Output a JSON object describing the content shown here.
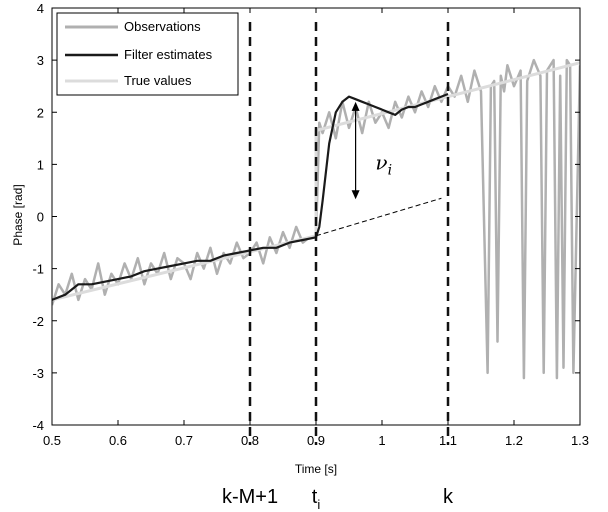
{
  "chart_data": {
    "type": "line",
    "xlabel": "Time [s]",
    "ylabel": "Phase [rad]",
    "xlim": [
      0.5,
      1.3
    ],
    "ylim": [
      -4,
      4
    ],
    "xticks": [
      0.5,
      0.6,
      0.7,
      0.8,
      0.9,
      1.0,
      1.1,
      1.2,
      1.3
    ],
    "xtick_labels": [
      "0.5",
      "0.6",
      "0.7",
      "0.8",
      "0.9",
      "1",
      "1.1",
      "1.2",
      "1.3"
    ],
    "yticks": [
      -4,
      -3,
      -2,
      -1,
      0,
      1,
      2,
      3,
      4
    ],
    "ytick_labels": [
      "-4",
      "-3",
      "-2",
      "-1",
      "0",
      "1",
      "2",
      "3",
      "4"
    ],
    "grid": false,
    "legend_position": "top-left",
    "series": [
      {
        "name": "Observations",
        "color": "#b0b0b0",
        "x": [
          0.5,
          0.51,
          0.52,
          0.53,
          0.54,
          0.55,
          0.56,
          0.57,
          0.58,
          0.59,
          0.6,
          0.61,
          0.62,
          0.63,
          0.64,
          0.65,
          0.66,
          0.67,
          0.68,
          0.69,
          0.7,
          0.71,
          0.72,
          0.73,
          0.74,
          0.75,
          0.76,
          0.77,
          0.78,
          0.79,
          0.8,
          0.81,
          0.82,
          0.83,
          0.84,
          0.85,
          0.86,
          0.87,
          0.88,
          0.89,
          0.9,
          0.905,
          0.91,
          0.92,
          0.93,
          0.94,
          0.95,
          0.96,
          0.97,
          0.98,
          0.99,
          1.0,
          1.01,
          1.02,
          1.03,
          1.04,
          1.05,
          1.06,
          1.07,
          1.08,
          1.09,
          1.1,
          1.11,
          1.12,
          1.13,
          1.14,
          1.15,
          1.16,
          1.165,
          1.17,
          1.175,
          1.18,
          1.185,
          1.19,
          1.2,
          1.21,
          1.215,
          1.22,
          1.23,
          1.24,
          1.245,
          1.25,
          1.26,
          1.265,
          1.27,
          1.275,
          1.28,
          1.285,
          1.29,
          1.3
        ],
        "values": [
          -1.7,
          -1.3,
          -1.5,
          -1.1,
          -1.6,
          -1.2,
          -1.4,
          -0.9,
          -1.5,
          -1.1,
          -1.3,
          -0.9,
          -1.2,
          -0.8,
          -1.3,
          -0.9,
          -1.1,
          -0.7,
          -1.2,
          -0.8,
          -0.9,
          -1.2,
          -0.7,
          -1.0,
          -0.6,
          -1.1,
          -0.7,
          -0.9,
          -0.5,
          -0.8,
          -0.7,
          -0.5,
          -0.9,
          -0.4,
          -0.7,
          -0.3,
          -0.6,
          -0.2,
          -0.5,
          -0.4,
          -0.4,
          1.8,
          1.6,
          2.0,
          1.5,
          2.2,
          1.7,
          2.1,
          1.6,
          2.2,
          1.8,
          2.0,
          1.7,
          2.2,
          1.9,
          2.3,
          2.0,
          2.4,
          2.1,
          2.5,
          2.2,
          2.5,
          2.3,
          2.7,
          2.2,
          2.8,
          2.4,
          -3.0,
          2.5,
          2.6,
          -2.4,
          2.7,
          2.4,
          2.9,
          2.5,
          2.8,
          -3.1,
          2.6,
          3.0,
          2.7,
          -3.0,
          2.8,
          3.0,
          -3.1,
          2.7,
          -2.9,
          3.0,
          2.9,
          -3.0,
          2.9
        ]
      },
      {
        "name": "Filter estimates",
        "color": "#1a1a1a",
        "x": [
          0.5,
          0.52,
          0.54,
          0.56,
          0.58,
          0.6,
          0.62,
          0.64,
          0.66,
          0.68,
          0.7,
          0.72,
          0.74,
          0.76,
          0.78,
          0.8,
          0.82,
          0.84,
          0.86,
          0.88,
          0.9,
          0.905,
          0.91,
          0.92,
          0.93,
          0.94,
          0.95,
          0.96,
          0.97,
          0.98,
          0.99,
          1.0,
          1.01,
          1.02,
          1.03,
          1.04,
          1.05,
          1.06,
          1.07,
          1.08,
          1.09,
          1.1
        ],
        "values": [
          -1.6,
          -1.5,
          -1.3,
          -1.3,
          -1.25,
          -1.2,
          -1.15,
          -1.05,
          -1.0,
          -0.95,
          -0.9,
          -0.85,
          -0.85,
          -0.75,
          -0.7,
          -0.65,
          -0.6,
          -0.6,
          -0.5,
          -0.45,
          -0.4,
          -0.2,
          0.3,
          1.4,
          2.0,
          2.2,
          2.3,
          2.25,
          2.2,
          2.15,
          2.1,
          2.05,
          2.0,
          1.95,
          2.05,
          2.1,
          2.1,
          2.15,
          2.2,
          2.25,
          2.3,
          2.35
        ]
      },
      {
        "name": "True values",
        "color": "#dcdcdc",
        "x": [
          0.5,
          0.9,
          0.9,
          1.3
        ],
        "values": [
          -1.6,
          -0.37,
          1.65,
          2.95
        ]
      }
    ],
    "extrapolation_line": {
      "x": [
        0.9,
        1.09
      ],
      "values": [
        -0.37,
        0.35
      ]
    },
    "nu_arrow": {
      "x": 0.96,
      "from": 0.33,
      "to": 2.2
    },
    "vlines": [
      {
        "x": 0.8,
        "label": "k-M+1"
      },
      {
        "x": 0.9,
        "label": "t",
        "sub": "i"
      },
      {
        "x": 1.1,
        "label": "k"
      }
    ],
    "annotations": [
      {
        "text": "ν",
        "sub": "i",
        "x": 0.99,
        "y": 0.9
      }
    ]
  }
}
